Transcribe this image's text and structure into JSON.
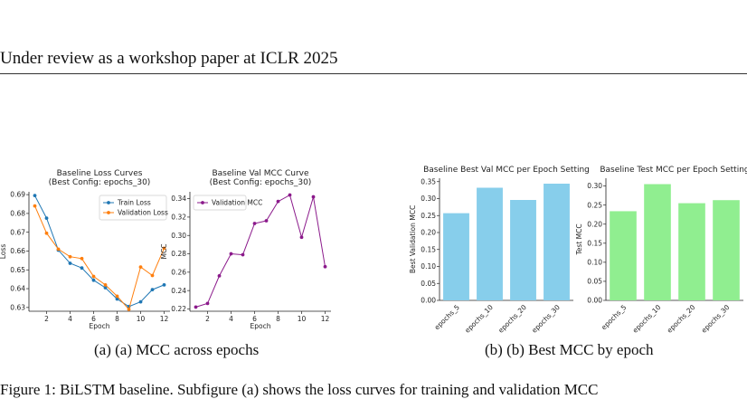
{
  "header": {
    "text": "Under review as a workshop paper at ICLR 2025"
  },
  "figure_text": "Figure 1: BiLSTM baseline. Subfigure (a) shows the loss curves for training and validation MCC",
  "captions": {
    "a": "(a) (a) MCC across epochs",
    "b": "(b) (b) Best MCC by epoch"
  },
  "chart_data": [
    {
      "type": "line",
      "title": [
        "Baseline Loss Curves",
        "(Best Config: epochs_30)"
      ],
      "xlabel": "Epoch",
      "ylabel": "Loss",
      "x": [
        1,
        2,
        3,
        4,
        5,
        6,
        7,
        8,
        9,
        10,
        11,
        12
      ],
      "xticks": [
        2,
        4,
        6,
        8,
        10,
        12
      ],
      "yticks": [
        0.63,
        0.64,
        0.65,
        0.66,
        0.67,
        0.68,
        0.69
      ],
      "xlim": [
        0.5,
        12.5
      ],
      "ylim": [
        0.628,
        0.6915
      ],
      "legend": "top-right",
      "grid": false,
      "series": [
        {
          "name": "Train Loss",
          "color": "#1f77b4",
          "values": [
            0.6895,
            0.6775,
            0.6605,
            0.6535,
            0.651,
            0.6445,
            0.6405,
            0.6345,
            0.6305,
            0.633,
            0.6395,
            0.642
          ]
        },
        {
          "name": "Validation Loss",
          "color": "#ff7f0e",
          "values": [
            0.684,
            0.6695,
            0.661,
            0.657,
            0.656,
            0.6465,
            0.642,
            0.636,
            0.629,
            0.6515,
            0.647,
            0.6615
          ]
        }
      ]
    },
    {
      "type": "line",
      "title": [
        "Baseline Val MCC Curve",
        "(Best Config: epochs_30)"
      ],
      "xlabel": "Epoch",
      "ylabel": "MCC",
      "x": [
        1,
        2,
        3,
        4,
        5,
        6,
        7,
        8,
        9,
        10,
        11,
        12
      ],
      "xticks": [
        2,
        4,
        6,
        8,
        10,
        12
      ],
      "yticks": [
        0.22,
        0.24,
        0.26,
        0.28,
        0.3,
        0.32,
        0.34
      ],
      "xlim": [
        0.5,
        12.5
      ],
      "ylim": [
        0.2175,
        0.3475
      ],
      "legend": "top-left",
      "grid": false,
      "series": [
        {
          "name": "Validation MCC",
          "color": "#8b1a8b",
          "values": [
            0.222,
            0.226,
            0.256,
            0.28,
            0.279,
            0.313,
            0.316,
            0.337,
            0.344,
            0.298,
            0.342,
            0.266
          ]
        }
      ]
    },
    {
      "type": "bar",
      "title": [
        "Baseline Best Val MCC per Epoch Setting"
      ],
      "xlabel": "",
      "ylabel": "Best Validation MCC",
      "categories": [
        "epochs_5",
        "epochs_10",
        "epochs_20",
        "epochs_30"
      ],
      "values": [
        0.257,
        0.332,
        0.296,
        0.344
      ],
      "yticks": [
        0.0,
        0.05,
        0.1,
        0.15,
        0.2,
        0.25,
        0.3,
        0.35
      ],
      "ylim": [
        0,
        0.36
      ],
      "color": "#87ceeb",
      "grid": false
    },
    {
      "type": "bar",
      "title": [
        "Baseline Test MCC per Epoch Setting"
      ],
      "xlabel": "",
      "ylabel": "Test MCC",
      "categories": [
        "epochs_5",
        "epochs_10",
        "epochs_20",
        "epochs_30"
      ],
      "values": [
        0.234,
        0.305,
        0.255,
        0.263
      ],
      "yticks": [
        0.0,
        0.05,
        0.1,
        0.15,
        0.2,
        0.25,
        0.3
      ],
      "ylim": [
        0,
        0.3205
      ],
      "color": "#90ee90",
      "grid": false
    }
  ]
}
